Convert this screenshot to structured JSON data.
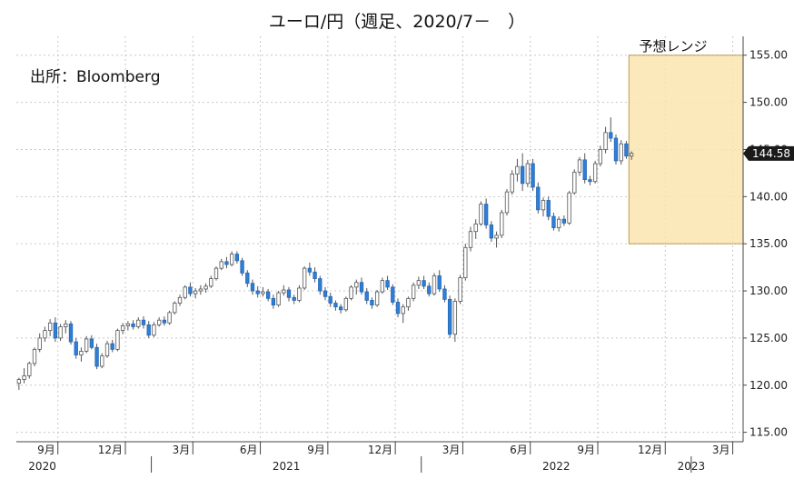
{
  "chart_data": {
    "type": "candlestick",
    "title": "ユーロ/円（週足、2020/7－　）",
    "source_note": "出所：Bloomberg",
    "forecast_label": "予想レンジ",
    "forecast_range": [
      135.0,
      155.0
    ],
    "forecast_color": "#fbe6b0",
    "current_price_label": "144.58",
    "current_price": 144.58,
    "up_color": "#ffffff",
    "down_color": "#2f7fd6",
    "ylim": [
      114,
      157
    ],
    "yticks": [
      {
        "value": 115,
        "label": "115.00"
      },
      {
        "value": 120,
        "label": "120.00"
      },
      {
        "value": 125,
        "label": "125.00"
      },
      {
        "value": 130,
        "label": "130.00"
      },
      {
        "value": 135,
        "label": "135.00"
      },
      {
        "value": 140,
        "label": "140.00"
      },
      {
        "value": 145,
        "label": "145.00"
      },
      {
        "value": 150,
        "label": "150.00"
      },
      {
        "value": 155,
        "label": "155.00"
      }
    ],
    "x_month_labels": [
      {
        "week": 8,
        "label": "9月"
      },
      {
        "week": 21,
        "label": "12月"
      },
      {
        "week": 34,
        "label": "3月"
      },
      {
        "week": 47,
        "label": "6月"
      },
      {
        "week": 60,
        "label": "9月"
      },
      {
        "week": 73,
        "label": "12月"
      },
      {
        "week": 86,
        "label": "3月"
      },
      {
        "week": 99,
        "label": "6月"
      },
      {
        "week": 112,
        "label": "9月"
      },
      {
        "week": 125,
        "label": "12月"
      },
      {
        "week": 138,
        "label": "3月"
      }
    ],
    "x_year_labels": [
      {
        "week": 5,
        "label": "2020"
      },
      {
        "week": 52,
        "label": "2021"
      },
      {
        "week": 104,
        "label": "2022"
      },
      {
        "week": 130,
        "label": "2023"
      }
    ],
    "year_boundaries": [
      26,
      78,
      130
    ],
    "week_range": [
      0,
      140
    ],
    "forecast_week_range": [
      118,
      140
    ],
    "ohlc_start_label": "2020/7",
    "ohlc": [
      [
        120.2,
        120.8,
        119.5,
        120.6
      ],
      [
        120.6,
        121.8,
        120.2,
        121.0
      ],
      [
        121.0,
        122.5,
        120.7,
        122.3
      ],
      [
        122.3,
        124.0,
        122.0,
        123.8
      ],
      [
        123.8,
        125.5,
        123.5,
        125.0
      ],
      [
        125.0,
        126.2,
        124.6,
        125.8
      ],
      [
        125.8,
        127.0,
        125.2,
        126.6
      ],
      [
        126.6,
        127.2,
        124.6,
        125.0
      ],
      [
        125.0,
        126.5,
        124.7,
        126.2
      ],
      [
        126.2,
        126.9,
        125.5,
        126.5
      ],
      [
        126.5,
        126.8,
        124.3,
        124.6
      ],
      [
        124.6,
        125.0,
        122.8,
        123.2
      ],
      [
        123.2,
        124.0,
        122.5,
        123.6
      ],
      [
        123.6,
        125.2,
        123.4,
        124.9
      ],
      [
        124.9,
        125.3,
        123.8,
        124.0
      ],
      [
        124.0,
        124.4,
        121.7,
        122.0
      ],
      [
        122.0,
        123.4,
        121.8,
        123.1
      ],
      [
        123.1,
        124.7,
        122.9,
        124.4
      ],
      [
        124.4,
        124.8,
        123.5,
        123.8
      ],
      [
        123.8,
        126.0,
        123.6,
        125.8
      ],
      [
        125.8,
        126.6,
        125.4,
        126.3
      ],
      [
        126.3,
        126.8,
        125.8,
        126.5
      ],
      [
        126.5,
        126.9,
        125.9,
        126.2
      ],
      [
        126.2,
        127.2,
        126.0,
        126.9
      ],
      [
        126.9,
        127.3,
        126.0,
        126.4
      ],
      [
        126.4,
        126.8,
        125.0,
        125.3
      ],
      [
        125.3,
        126.7,
        125.1,
        126.4
      ],
      [
        126.4,
        127.2,
        126.2,
        126.9
      ],
      [
        126.9,
        127.3,
        126.3,
        126.6
      ],
      [
        126.6,
        127.9,
        126.4,
        127.7
      ],
      [
        127.7,
        128.9,
        127.5,
        128.7
      ],
      [
        128.7,
        129.6,
        128.4,
        129.3
      ],
      [
        129.3,
        130.6,
        129.1,
        130.4
      ],
      [
        130.4,
        130.9,
        129.4,
        129.7
      ],
      [
        129.7,
        130.3,
        129.2,
        130.0
      ],
      [
        130.0,
        130.6,
        129.6,
        130.2
      ],
      [
        130.2,
        130.8,
        129.8,
        130.5
      ],
      [
        130.5,
        131.6,
        130.3,
        131.3
      ],
      [
        131.3,
        132.6,
        131.1,
        132.4
      ],
      [
        132.4,
        133.4,
        132.2,
        133.1
      ],
      [
        133.1,
        133.6,
        132.4,
        132.8
      ],
      [
        132.8,
        134.2,
        132.6,
        133.9
      ],
      [
        133.9,
        134.2,
        132.9,
        133.2
      ],
      [
        133.2,
        133.5,
        131.6,
        131.9
      ],
      [
        131.9,
        132.2,
        130.4,
        130.8
      ],
      [
        130.8,
        131.2,
        129.6,
        130.0
      ],
      [
        130.0,
        130.5,
        129.3,
        129.7
      ],
      [
        129.7,
        130.4,
        129.4,
        129.9
      ],
      [
        129.9,
        130.2,
        128.9,
        129.2
      ],
      [
        129.2,
        129.6,
        128.1,
        128.5
      ],
      [
        128.5,
        130.0,
        128.3,
        129.8
      ],
      [
        129.8,
        130.6,
        129.5,
        130.1
      ],
      [
        130.1,
        130.4,
        128.9,
        129.3
      ],
      [
        129.3,
        129.6,
        128.6,
        129.0
      ],
      [
        129.0,
        130.6,
        128.8,
        130.3
      ],
      [
        130.3,
        132.6,
        130.1,
        132.4
      ],
      [
        132.4,
        133.0,
        131.6,
        132.0
      ],
      [
        132.0,
        132.5,
        130.9,
        131.3
      ],
      [
        131.3,
        131.6,
        129.6,
        130.0
      ],
      [
        130.0,
        130.4,
        129.0,
        129.4
      ],
      [
        129.4,
        129.8,
        128.3,
        128.7
      ],
      [
        128.7,
        129.0,
        127.9,
        128.3
      ],
      [
        128.3,
        128.6,
        127.6,
        128.0
      ],
      [
        128.0,
        129.4,
        127.8,
        129.2
      ],
      [
        129.2,
        130.6,
        129.0,
        130.4
      ],
      [
        130.4,
        131.2,
        129.6,
        130.9
      ],
      [
        130.9,
        131.4,
        129.6,
        129.9
      ],
      [
        129.9,
        130.3,
        128.6,
        129.0
      ],
      [
        129.0,
        129.3,
        128.1,
        128.5
      ],
      [
        128.5,
        130.1,
        128.3,
        129.9
      ],
      [
        129.9,
        131.4,
        129.7,
        131.1
      ],
      [
        131.1,
        131.6,
        130.1,
        130.4
      ],
      [
        130.4,
        130.7,
        128.5,
        128.8
      ],
      [
        128.8,
        129.2,
        127.2,
        127.6
      ],
      [
        127.6,
        128.6,
        126.6,
        128.3
      ],
      [
        128.3,
        129.4,
        127.9,
        129.2
      ],
      [
        129.2,
        130.9,
        128.9,
        130.6
      ],
      [
        130.6,
        131.5,
        130.2,
        131.1
      ],
      [
        131.1,
        131.6,
        130.2,
        130.5
      ],
      [
        130.5,
        130.9,
        129.4,
        129.7
      ],
      [
        129.7,
        131.9,
        129.5,
        131.6
      ],
      [
        131.6,
        132.2,
        129.9,
        130.2
      ],
      [
        130.2,
        130.6,
        128.8,
        129.1
      ],
      [
        129.1,
        129.5,
        125.0,
        125.4
      ],
      [
        125.4,
        129.2,
        124.6,
        128.9
      ],
      [
        128.9,
        131.7,
        128.6,
        131.4
      ],
      [
        131.4,
        135.0,
        131.1,
        134.6
      ],
      [
        134.6,
        136.8,
        134.2,
        136.3
      ],
      [
        136.3,
        137.6,
        135.5,
        137.1
      ],
      [
        137.1,
        139.5,
        136.9,
        139.2
      ],
      [
        139.2,
        139.8,
        136.6,
        137.0
      ],
      [
        137.0,
        137.4,
        135.2,
        135.6
      ],
      [
        135.6,
        136.3,
        134.6,
        135.9
      ],
      [
        135.9,
        138.6,
        135.6,
        138.3
      ],
      [
        138.3,
        140.8,
        138.0,
        140.5
      ],
      [
        140.5,
        142.8,
        140.2,
        142.4
      ],
      [
        142.4,
        144.0,
        141.6,
        143.2
      ],
      [
        143.2,
        144.6,
        140.6,
        141.4
      ],
      [
        141.4,
        143.9,
        141.0,
        143.5
      ],
      [
        143.5,
        144.0,
        140.6,
        141.0
      ],
      [
        141.0,
        141.5,
        138.2,
        138.6
      ],
      [
        138.6,
        139.9,
        137.9,
        139.6
      ],
      [
        139.6,
        140.0,
        137.5,
        137.9
      ],
      [
        137.9,
        138.3,
        136.4,
        136.7
      ],
      [
        136.7,
        137.9,
        136.3,
        137.6
      ],
      [
        137.6,
        138.0,
        136.9,
        137.2
      ],
      [
        137.2,
        140.6,
        137.0,
        140.4
      ],
      [
        140.4,
        142.9,
        140.2,
        142.6
      ],
      [
        142.6,
        144.2,
        142.2,
        143.9
      ],
      [
        143.9,
        144.6,
        141.4,
        141.8
      ],
      [
        141.8,
        142.2,
        141.2,
        141.6
      ],
      [
        141.6,
        143.8,
        141.4,
        143.5
      ],
      [
        143.5,
        145.4,
        143.2,
        145.0
      ],
      [
        145.0,
        147.4,
        144.6,
        146.8
      ],
      [
        146.8,
        148.4,
        145.8,
        146.2
      ],
      [
        146.2,
        146.6,
        143.4,
        143.8
      ],
      [
        143.8,
        146.0,
        143.4,
        145.6
      ],
      [
        145.6,
        145.9,
        144.0,
        144.3
      ],
      [
        144.3,
        144.8,
        143.9,
        144.58
      ]
    ]
  }
}
